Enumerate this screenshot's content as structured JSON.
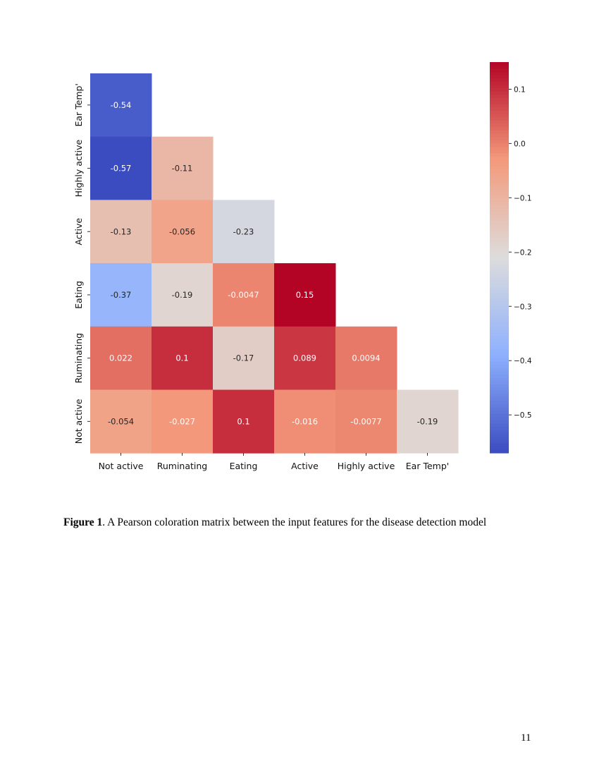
{
  "chart_data": {
    "type": "heatmap",
    "x_labels": [
      "Not active",
      "Ruminating",
      "Eating",
      "Active",
      "Highly active",
      "Ear Temp'"
    ],
    "y_labels": [
      "Ear Temp'",
      "Highly active",
      "Active",
      "Eating",
      "Ruminating",
      "Not active"
    ],
    "values": [
      [
        -0.54
      ],
      [
        -0.57,
        -0.11
      ],
      [
        -0.13,
        -0.056,
        -0.23
      ],
      [
        -0.37,
        -0.19,
        -0.0047,
        0.15
      ],
      [
        0.022,
        0.1,
        -0.17,
        0.089,
        0.0094
      ],
      [
        -0.054,
        -0.027,
        0.1,
        -0.016,
        -0.0077,
        -0.19
      ]
    ],
    "colormap": "coolwarm",
    "colorbar": {
      "range": [
        -0.57,
        0.15
      ],
      "ticks": [
        "0.1",
        "0.0",
        "−0.1",
        "−0.2",
        "−0.3",
        "−0.4",
        "−0.5"
      ],
      "tick_values": [
        0.1,
        0.0,
        -0.1,
        -0.2,
        -0.3,
        -0.4,
        -0.5
      ],
      "placement": "right"
    },
    "mask": "lower-triangle"
  },
  "caption": {
    "label": "Figure 1",
    "text": ". A Pearson coloration matrix between the input features for the disease detection model"
  },
  "page_number": "11"
}
